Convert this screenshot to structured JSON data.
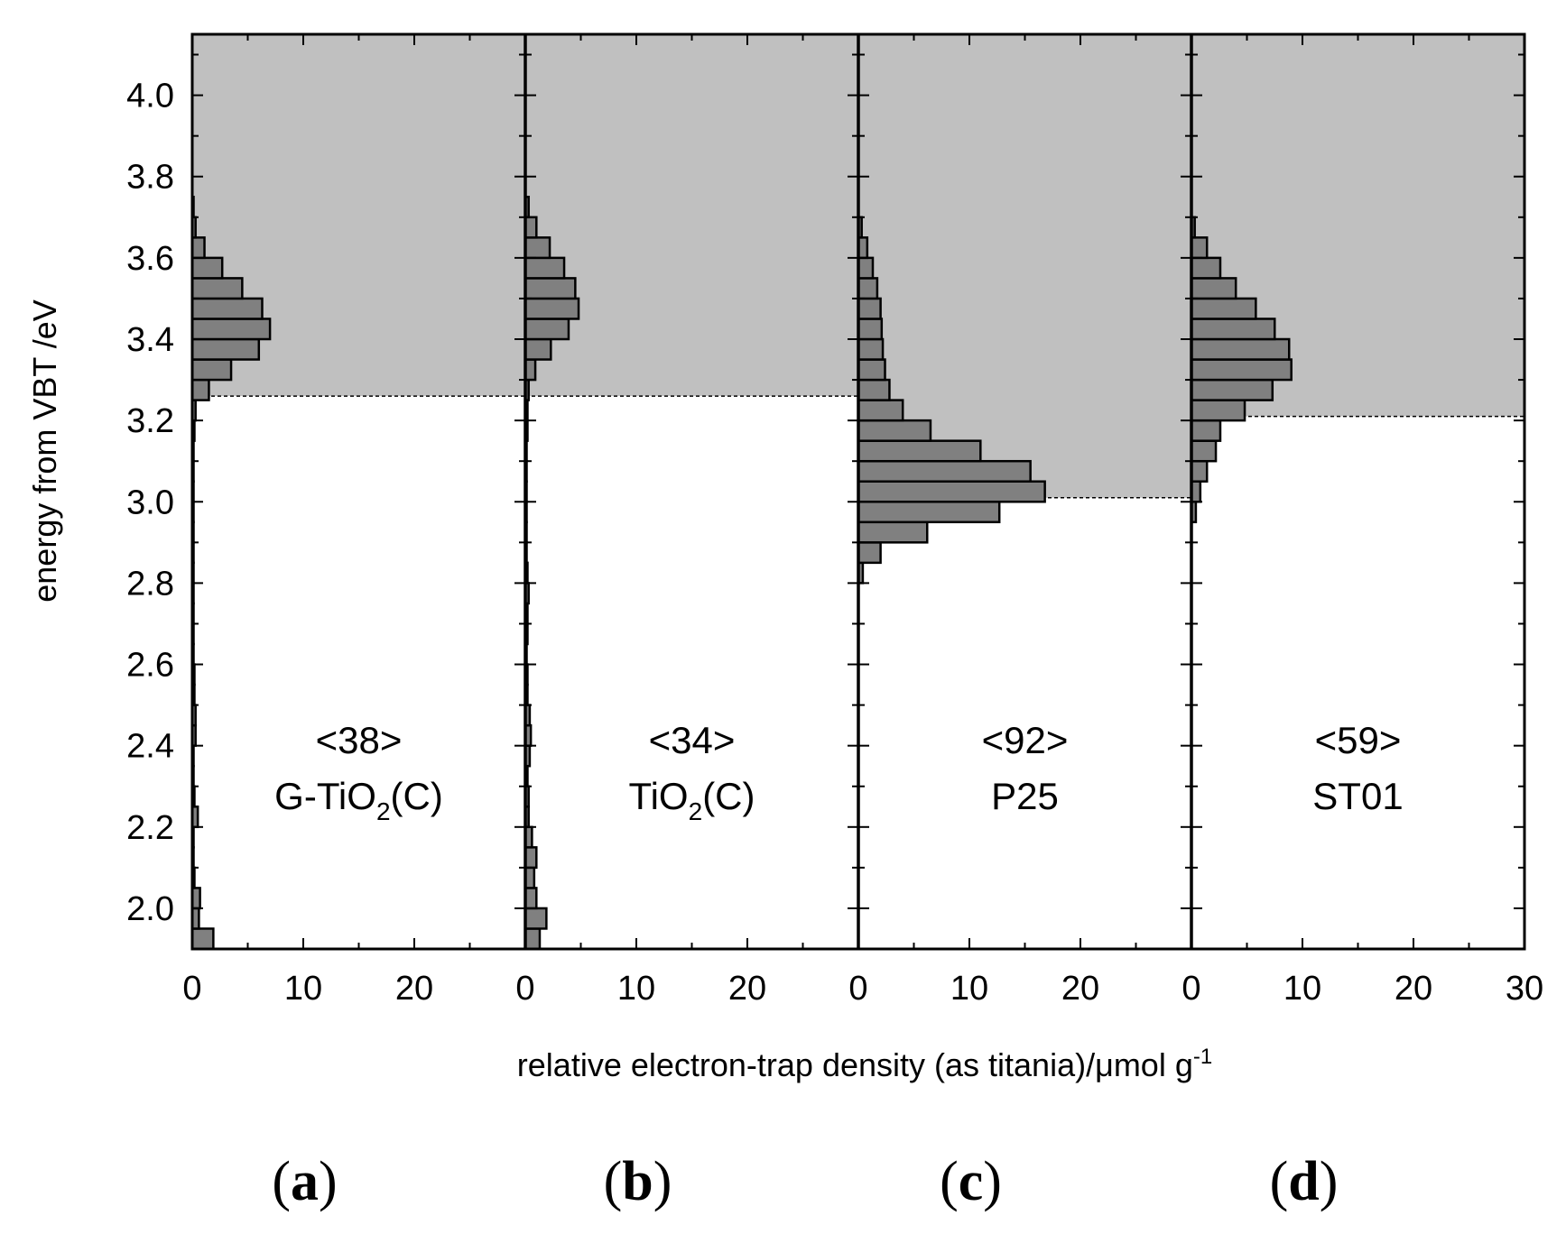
{
  "chart_data": {
    "type": "bar",
    "orientation": "horizontal",
    "ylabel": "energy from VBT /eV",
    "xlabel_main": "relative electron-trap density (as titania)/μmol g",
    "xlabel_sup": "-1",
    "ylim": [
      1.9,
      4.15
    ],
    "yticks": [
      "2.0",
      "2.2",
      "2.4",
      "2.6",
      "2.8",
      "3.0",
      "3.2",
      "3.4",
      "3.6",
      "3.8",
      "4.0"
    ],
    "xlim": [
      0,
      30
    ],
    "xticks_inner": [
      "0",
      "10",
      "20"
    ],
    "xtick_last": "30",
    "bin_width": 0.05,
    "colors": {
      "band_fill": "#c0c0c0",
      "bar_fill": "#808080",
      "bar_stroke": "#000000"
    },
    "panels": [
      {
        "tag": "(a)",
        "tag_letter": "a",
        "number": "<38>",
        "name_main": "G-TiO",
        "name_sub": "2",
        "name_tail": "(C)",
        "cb_edge": 3.26,
        "bins": [
          [
            1.9,
            1.9
          ],
          [
            1.95,
            0.6
          ],
          [
            2.0,
            0.7
          ],
          [
            2.05,
            0.2
          ],
          [
            2.1,
            0.1
          ],
          [
            2.15,
            0.1
          ],
          [
            2.2,
            0.5
          ],
          [
            2.25,
            0.2
          ],
          [
            2.3,
            0.1
          ],
          [
            2.35,
            0.1
          ],
          [
            2.4,
            0.3
          ],
          [
            2.45,
            0.3
          ],
          [
            2.5,
            0.2
          ],
          [
            2.55,
            0.2
          ],
          [
            2.6,
            0.1
          ],
          [
            2.65,
            0.1
          ],
          [
            2.7,
            0.1
          ],
          [
            2.75,
            0.1
          ],
          [
            2.8,
            0.1
          ],
          [
            2.85,
            0.1
          ],
          [
            2.9,
            0.1
          ],
          [
            2.95,
            0.1
          ],
          [
            3.0,
            0.1
          ],
          [
            3.05,
            0.1
          ],
          [
            3.1,
            0.1
          ],
          [
            3.15,
            0.2
          ],
          [
            3.2,
            0.3
          ],
          [
            3.25,
            1.5
          ],
          [
            3.3,
            3.5
          ],
          [
            3.35,
            6.0
          ],
          [
            3.4,
            7.0
          ],
          [
            3.45,
            6.3
          ],
          [
            3.5,
            4.5
          ],
          [
            3.55,
            2.7
          ],
          [
            3.6,
            1.1
          ],
          [
            3.65,
            0.3
          ],
          [
            3.7,
            0.1
          ]
        ]
      },
      {
        "tag": "(b)",
        "tag_letter": "b",
        "number": "<34>",
        "name_main": "TiO",
        "name_sub": "2",
        "name_tail": "(C)",
        "cb_edge": 3.26,
        "bins": [
          [
            1.9,
            1.3
          ],
          [
            1.95,
            1.9
          ],
          [
            2.0,
            1.0
          ],
          [
            2.05,
            0.8
          ],
          [
            2.1,
            1.0
          ],
          [
            2.15,
            0.6
          ],
          [
            2.2,
            0.3
          ],
          [
            2.25,
            0.3
          ],
          [
            2.3,
            0.2
          ],
          [
            2.35,
            0.4
          ],
          [
            2.4,
            0.5
          ],
          [
            2.45,
            0.4
          ],
          [
            2.5,
            0.2
          ],
          [
            2.55,
            0.2
          ],
          [
            2.6,
            0.1
          ],
          [
            2.65,
            0.2
          ],
          [
            2.7,
            0.2
          ],
          [
            2.75,
            0.3
          ],
          [
            2.8,
            0.2
          ],
          [
            2.85,
            0.1
          ],
          [
            2.9,
            0.1
          ],
          [
            2.95,
            0.1
          ],
          [
            3.0,
            0.1
          ],
          [
            3.05,
            0.1
          ],
          [
            3.1,
            0.1
          ],
          [
            3.15,
            0.2
          ],
          [
            3.2,
            0.2
          ],
          [
            3.25,
            0.3
          ],
          [
            3.3,
            0.9
          ],
          [
            3.35,
            2.3
          ],
          [
            3.4,
            3.9
          ],
          [
            3.45,
            4.8
          ],
          [
            3.5,
            4.5
          ],
          [
            3.55,
            3.5
          ],
          [
            3.6,
            2.2
          ],
          [
            3.65,
            1.0
          ],
          [
            3.7,
            0.3
          ]
        ]
      },
      {
        "tag": "(c)",
        "tag_letter": "c",
        "number": "<92>",
        "name_main": "P25",
        "name_sub": "",
        "name_tail": "",
        "cb_edge": 3.01,
        "bins": [
          [
            2.8,
            0.4
          ],
          [
            2.85,
            2.0
          ],
          [
            2.9,
            6.2
          ],
          [
            2.95,
            12.7
          ],
          [
            3.0,
            16.8
          ],
          [
            3.05,
            15.5
          ],
          [
            3.1,
            11.0
          ],
          [
            3.15,
            6.5
          ],
          [
            3.2,
            4.0
          ],
          [
            3.25,
            2.8
          ],
          [
            3.3,
            2.4
          ],
          [
            3.35,
            2.2
          ],
          [
            3.4,
            2.1
          ],
          [
            3.45,
            2.0
          ],
          [
            3.5,
            1.7
          ],
          [
            3.55,
            1.3
          ],
          [
            3.6,
            0.8
          ],
          [
            3.65,
            0.3
          ]
        ]
      },
      {
        "tag": "(d)",
        "tag_letter": "d",
        "number": "<59>",
        "name_main": "ST01",
        "name_sub": "",
        "name_tail": "",
        "cb_edge": 3.21,
        "bins": [
          [
            2.95,
            0.4
          ],
          [
            3.0,
            0.8
          ],
          [
            3.05,
            1.4
          ],
          [
            3.1,
            2.2
          ],
          [
            3.15,
            2.6
          ],
          [
            3.2,
            4.8
          ],
          [
            3.25,
            7.3
          ],
          [
            3.3,
            9.0
          ],
          [
            3.35,
            8.8
          ],
          [
            3.4,
            7.5
          ],
          [
            3.45,
            5.8
          ],
          [
            3.5,
            4.0
          ],
          [
            3.55,
            2.6
          ],
          [
            3.6,
            1.4
          ],
          [
            3.65,
            0.3
          ]
        ]
      }
    ]
  }
}
